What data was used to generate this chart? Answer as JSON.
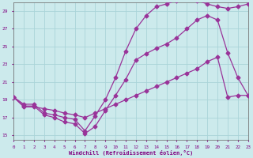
{
  "xlabel": "Windchill (Refroidissement éolien,°C)",
  "ylabel": "",
  "bg_color": "#cceaec",
  "line_color": "#993399",
  "grid_color": "#aad4d8",
  "text_color": "#800080",
  "xlim": [
    0,
    23
  ],
  "ylim": [
    14.5,
    30.0
  ],
  "yticks": [
    15,
    17,
    19,
    21,
    23,
    25,
    27,
    29
  ],
  "xticks": [
    0,
    1,
    2,
    3,
    4,
    5,
    6,
    7,
    8,
    9,
    10,
    11,
    12,
    13,
    14,
    15,
    16,
    17,
    18,
    19,
    20,
    21,
    22,
    23
  ],
  "line1_x": [
    0,
    1,
    2,
    3,
    4,
    5,
    6,
    7,
    8,
    9,
    10,
    11,
    12,
    13,
    14,
    15,
    16,
    17,
    18,
    19,
    20,
    21,
    22,
    23
  ],
  "line1_y": [
    19.3,
    18.3,
    18.3,
    17.3,
    17.0,
    16.5,
    16.3,
    15.2,
    16.0,
    17.8,
    19.5,
    21.3,
    23.5,
    24.2,
    24.8,
    25.3,
    26.0,
    27.0,
    28.0,
    28.5,
    28.0,
    24.3,
    21.5,
    19.5
  ],
  "line2_x": [
    0,
    1,
    2,
    3,
    4,
    5,
    6,
    7,
    8,
    9,
    10,
    11,
    12,
    13,
    14,
    15,
    16,
    17,
    18,
    19,
    20,
    21,
    22,
    23
  ],
  "line2_y": [
    19.3,
    18.5,
    18.5,
    17.5,
    17.3,
    17.0,
    16.8,
    15.5,
    17.2,
    19.0,
    21.5,
    24.5,
    27.0,
    28.5,
    29.5,
    29.8,
    30.2,
    30.5,
    30.2,
    29.8,
    29.5,
    29.3,
    29.5,
    29.8
  ],
  "line3_x": [
    0,
    1,
    2,
    3,
    4,
    5,
    6,
    7,
    8,
    9,
    10,
    11,
    12,
    13,
    14,
    15,
    16,
    17,
    18,
    19,
    20,
    21,
    22,
    23
  ],
  "line3_y": [
    19.3,
    18.2,
    18.2,
    18.0,
    17.8,
    17.5,
    17.3,
    17.0,
    17.5,
    18.0,
    18.5,
    19.0,
    19.5,
    20.0,
    20.5,
    21.0,
    21.5,
    22.0,
    22.5,
    23.3,
    23.8,
    19.3,
    19.5,
    19.5
  ]
}
